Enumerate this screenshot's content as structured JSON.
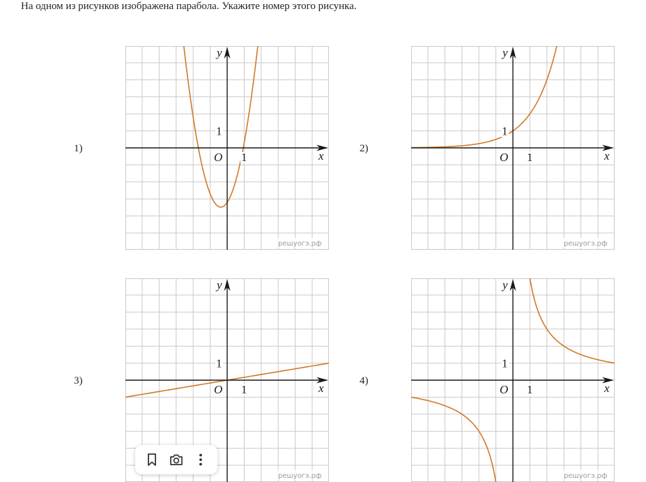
{
  "question": "На одном из рисунков изображена парабола. Укажите номер этого рисунка.",
  "options": [
    {
      "label": "1)",
      "curve": "parabola"
    },
    {
      "label": "2)",
      "curve": "exponential"
    },
    {
      "label": "3)",
      "curve": "line"
    },
    {
      "label": "4)",
      "curve": "hyperbola"
    }
  ],
  "graph_text": {
    "y": "y",
    "x": "x",
    "origin": "O",
    "one_x": "1",
    "one_y": "1"
  },
  "watermark": "решуогэ.рф",
  "colors": {
    "curve": "#d07a2a",
    "grid": "#c9c9c9",
    "axis": "#1a1a1a"
  },
  "toolbar": {
    "icons": [
      "bookmark-icon",
      "camera-icon",
      "more-vertical-icon"
    ]
  }
}
